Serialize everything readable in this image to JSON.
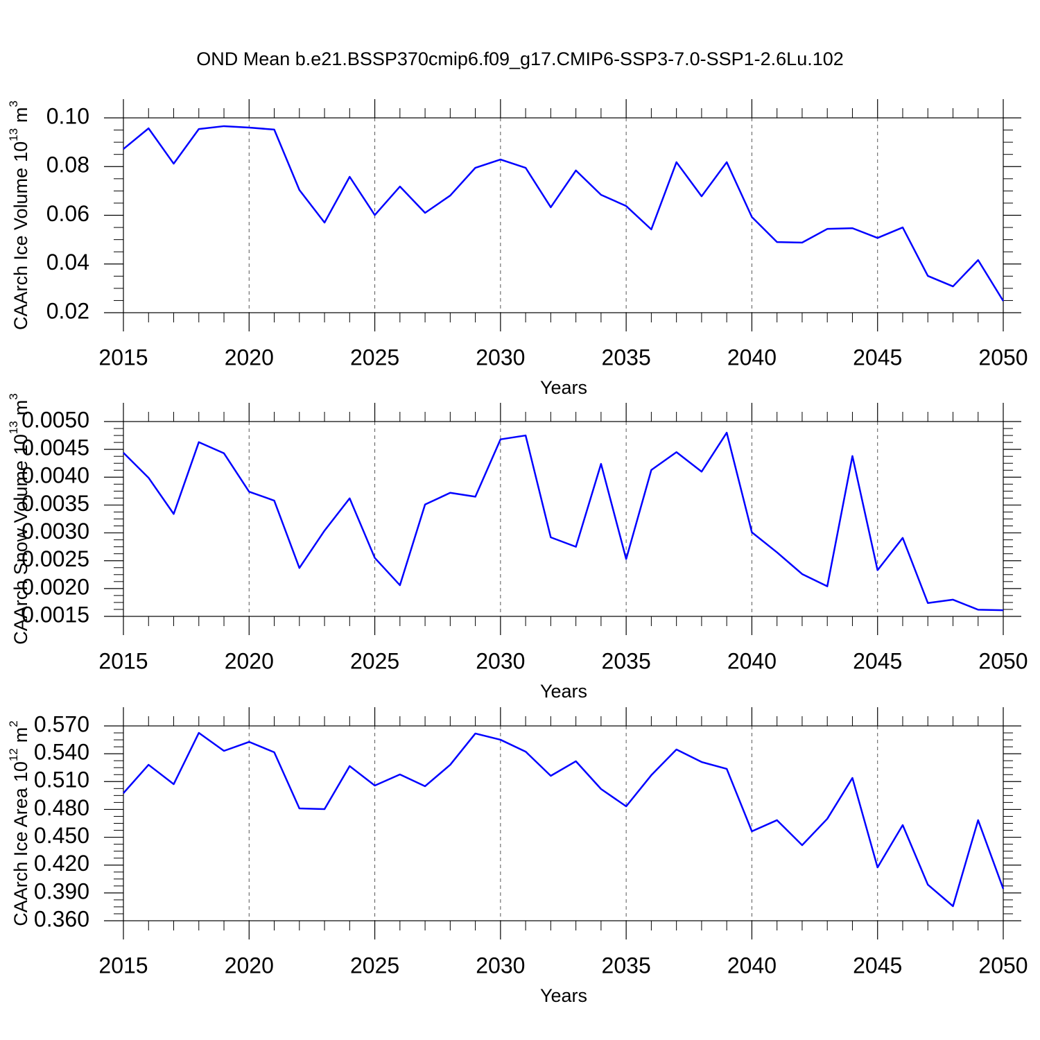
{
  "title": "OND Mean b.e21.BSSP370cmip6.f09_g17.CMIP6-SSP3-7.0-SSP1-2.6Lu.102",
  "chart_data": [
    {
      "type": "line",
      "xlabel": "Years",
      "ylabel": {
        "name": "CAArch Ice Volume",
        "scale": "10",
        "scale_exp": "13",
        "unit": "m",
        "unit_exp": "3"
      },
      "x": [
        2015,
        2016,
        2017,
        2018,
        2019,
        2020,
        2021,
        2022,
        2023,
        2024,
        2025,
        2026,
        2027,
        2028,
        2029,
        2030,
        2031,
        2032,
        2033,
        2034,
        2035,
        2036,
        2037,
        2038,
        2039,
        2040,
        2041,
        2042,
        2043,
        2044,
        2045,
        2046,
        2047,
        2048,
        2049,
        2050
      ],
      "series": [
        {
          "color": "#0000ff",
          "values": [
            0.0872,
            0.0957,
            0.0812,
            0.0954,
            0.0966,
            0.096,
            0.0952,
            0.0704,
            0.057,
            0.0758,
            0.0601,
            0.0718,
            0.061,
            0.0681,
            0.0795,
            0.0829,
            0.0795,
            0.0633,
            0.0784,
            0.0684,
            0.0638,
            0.0542,
            0.0818,
            0.0678,
            0.0818,
            0.0593,
            0.049,
            0.0488,
            0.0544,
            0.0547,
            0.0507,
            0.055,
            0.0351,
            0.0308,
            0.0416,
            0.0248
          ]
        }
      ],
      "xlim": [
        2015,
        2050
      ],
      "xticks": [
        2015,
        2020,
        2025,
        2030,
        2035,
        2040,
        2045,
        2050
      ],
      "ylim": [
        0.02,
        0.1
      ],
      "yticks": [
        0.02,
        0.04,
        0.06,
        0.08,
        {
          "value": 0.1,
          "label": "0.10"
        }
      ],
      "grid": "x"
    },
    {
      "type": "line",
      "xlabel": "Years",
      "ylabel": {
        "name": "CAArch Snow Volume",
        "scale": "10",
        "scale_exp": "13",
        "unit": "m",
        "unit_exp": "3"
      },
      "x": [
        2015,
        2016,
        2017,
        2018,
        2019,
        2020,
        2021,
        2022,
        2023,
        2024,
        2025,
        2026,
        2027,
        2028,
        2029,
        2030,
        2031,
        2032,
        2033,
        2034,
        2035,
        2036,
        2037,
        2038,
        2039,
        2040,
        2041,
        2042,
        2043,
        2044,
        2045,
        2046,
        2047,
        2048,
        2049,
        2050
      ],
      "series": [
        {
          "color": "#0000ff",
          "values": [
            0.00444,
            0.00399,
            0.00334,
            0.00463,
            0.00443,
            0.00374,
            0.00358,
            0.00237,
            0.00304,
            0.00362,
            0.00255,
            0.00206,
            0.00351,
            0.00372,
            0.00365,
            0.00468,
            0.00475,
            0.00292,
            0.00275,
            0.00424,
            0.00253,
            0.00413,
            0.00445,
            0.0041,
            0.0048,
            0.00301,
            0.00265,
            0.00226,
            0.00204,
            0.00438,
            0.00233,
            0.00291,
            0.00174,
            0.0018,
            0.00162,
            0.00161
          ]
        }
      ],
      "xlim": [
        2015,
        2050
      ],
      "xticks": [
        2015,
        2020,
        2025,
        2030,
        2035,
        2040,
        2045,
        2050
      ],
      "ylim": [
        0.0015,
        0.005
      ],
      "yticks": [
        0.0015,
        {
          "value": 0.002,
          "label": "0.0020"
        },
        0.0025,
        {
          "value": 0.003,
          "label": "0.0030"
        },
        0.0035,
        {
          "value": 0.004,
          "label": "0.0040"
        },
        0.0045,
        {
          "value": 0.005,
          "label": "0.0050"
        }
      ],
      "grid": "x"
    },
    {
      "type": "line",
      "xlabel": "Years",
      "ylabel": {
        "name": "CAArch Ice Area",
        "scale": "10",
        "scale_exp": "12",
        "unit": "m",
        "unit_exp": "2"
      },
      "x": [
        2015,
        2016,
        2017,
        2018,
        2019,
        2020,
        2021,
        2022,
        2023,
        2024,
        2025,
        2026,
        2027,
        2028,
        2029,
        2030,
        2031,
        2032,
        2033,
        2034,
        2035,
        2036,
        2037,
        2038,
        2039,
        2040,
        2041,
        2042,
        2043,
        2044,
        2045,
        2046,
        2047,
        2048,
        2049,
        2050
      ],
      "series": [
        {
          "color": "#0000ff",
          "values": [
            0.4975,
            0.5281,
            0.5072,
            0.5625,
            0.5431,
            0.5528,
            0.5416,
            0.4811,
            0.4803,
            0.5267,
            0.5057,
            0.5177,
            0.505,
            0.5281,
            0.5618,
            0.5551,
            0.5423,
            0.5162,
            0.5319,
            0.502,
            0.4833,
            0.5169,
            0.5446,
            0.5311,
            0.5237,
            0.4564,
            0.4684,
            0.4415,
            0.4699,
            0.5139,
            0.4175,
            0.4631,
            0.3989,
            0.3757,
            0.4684,
            0.3944
          ]
        }
      ],
      "xlim": [
        2015,
        2050
      ],
      "xticks": [
        2015,
        2020,
        2025,
        2030,
        2035,
        2040,
        2045,
        2050
      ],
      "ylim": [
        0.36,
        0.57
      ],
      "yticks": [
        {
          "value": 0.36,
          "label": "0.360"
        },
        {
          "value": 0.39,
          "label": "0.390"
        },
        {
          "value": 0.42,
          "label": "0.420"
        },
        {
          "value": 0.45,
          "label": "0.450"
        },
        {
          "value": 0.48,
          "label": "0.480"
        },
        {
          "value": 0.51,
          "label": "0.510"
        },
        {
          "value": 0.54,
          "label": "0.540"
        },
        {
          "value": 0.57,
          "label": "0.570"
        }
      ],
      "grid": "x"
    }
  ]
}
